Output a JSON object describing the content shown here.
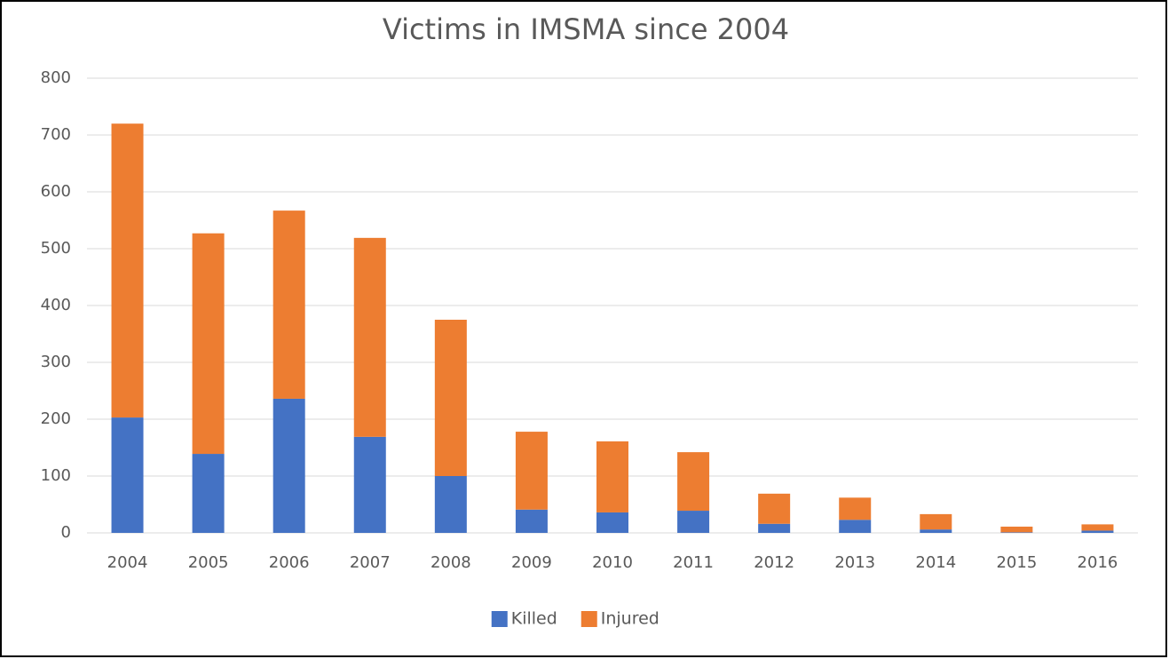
{
  "chart_data": {
    "type": "bar",
    "stacked": true,
    "title": "Victims in IMSMA since 2004",
    "categories": [
      "2004",
      "2005",
      "2006",
      "2007",
      "2008",
      "2009",
      "2010",
      "2011",
      "2012",
      "2013",
      "2014",
      "2015",
      "2016"
    ],
    "series": [
      {
        "name": "Killed",
        "color": "#4472c4",
        "values": [
          203,
          139,
          236,
          169,
          100,
          41,
          36,
          39,
          16,
          23,
          6,
          1,
          4
        ]
      },
      {
        "name": "Injured",
        "color": "#ed7d31",
        "values": [
          517,
          388,
          331,
          350,
          275,
          137,
          125,
          103,
          53,
          39,
          27,
          10,
          11
        ]
      }
    ],
    "ylim": [
      0,
      800
    ],
    "yticks": [
      0,
      100,
      200,
      300,
      400,
      500,
      600,
      700,
      800
    ],
    "grid": true,
    "legend": "bottom"
  }
}
